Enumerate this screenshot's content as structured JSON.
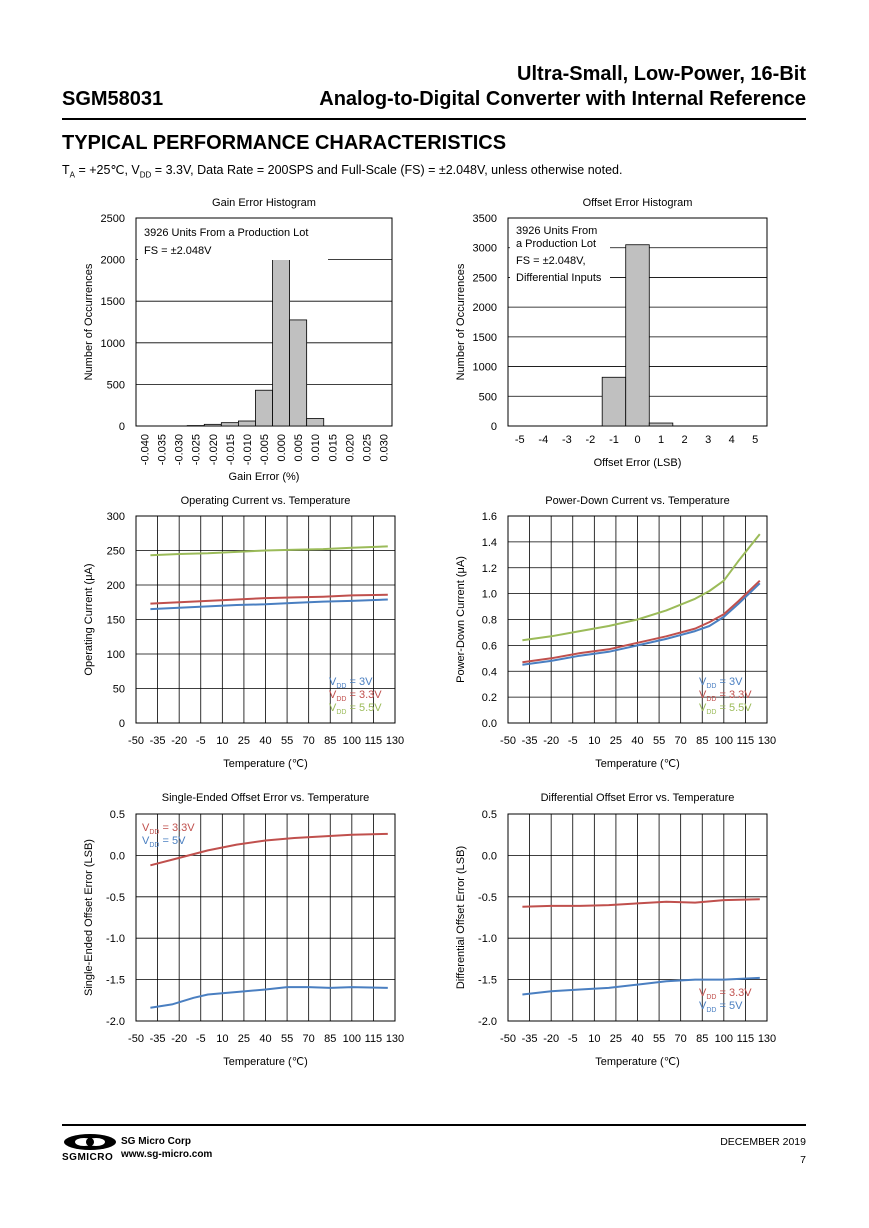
{
  "header": {
    "part_number": "SGM58031",
    "title_line1": "Ultra-Small, Low-Power, 16-Bit",
    "title_line2": "Analog-to-Digital Converter with Internal Reference"
  },
  "section_title": "TYPICAL PERFORMANCE CHARACTERISTICS",
  "conditions": {
    "t_a": "T",
    "t_a_sub": "A",
    "t_a_rest": " = +25℃, V",
    "v_sub": "DD",
    "rest": " = 3.3V, Data Rate = 200SPS and Full-Scale (FS) = ±2.048V, unless otherwise noted."
  },
  "colors": {
    "blue": "#4a7fc1",
    "red": "#c0504d",
    "green": "#9bbb59",
    "bar": "#c0c0c0"
  },
  "chart_data": [
    {
      "type": "bar",
      "title": "Gain Error Histogram",
      "xlabel": "Gain Error (%)",
      "ylabel": "Number of Occurrences",
      "ylim": [
        0,
        2500
      ],
      "yticks": [
        "0",
        "500",
        "1000",
        "1500",
        "2000",
        "2500"
      ],
      "categories": [
        "-0.040",
        "-0.035",
        "-0.030",
        "-0.025",
        "-0.020",
        "-0.015",
        "-0.010",
        "-0.005",
        "0.000",
        "0.005",
        "0.010",
        "0.015",
        "0.020",
        "0.025",
        "0.030"
      ],
      "values": [
        0,
        0,
        0,
        5,
        20,
        40,
        60,
        430,
        2010,
        1275,
        90,
        0,
        0,
        0,
        0
      ],
      "annotations": [
        "3926 Units From a Production Lot",
        "FS = ±2.048V"
      ]
    },
    {
      "type": "bar",
      "title": "Offset Error Histogram",
      "xlabel": "Offset Error (LSB)",
      "ylabel": "Number of Occurrences",
      "ylim": [
        0,
        3500
      ],
      "yticks": [
        "0",
        "500",
        "1000",
        "1500",
        "2000",
        "2500",
        "3000",
        "3500"
      ],
      "categories": [
        "-5",
        "-4",
        "-3",
        "-2",
        "-1",
        "0",
        "1",
        "2",
        "3",
        "4",
        "5"
      ],
      "values": [
        0,
        0,
        0,
        0,
        820,
        3050,
        50,
        0,
        0,
        0,
        0
      ],
      "annotations": [
        "3926 Units From",
        "a Production Lot",
        "FS = ±2.048V,",
        "Differential Inputs"
      ]
    },
    {
      "type": "line",
      "title": "Operating Current vs. Temperature",
      "xlabel": "Temperature (℃)",
      "ylabel": "Operating Current (μA)",
      "xlim": [
        -50,
        130
      ],
      "ylim": [
        0,
        300
      ],
      "xticks": [
        "-50",
        "-35",
        "-20",
        "-5",
        "10",
        "25",
        "40",
        "55",
        "70",
        "85",
        "100",
        "115",
        "130"
      ],
      "yticks": [
        "0",
        "50",
        "100",
        "150",
        "200",
        "250",
        "300"
      ],
      "legend": "bottom-right",
      "series": [
        {
          "name": "V",
          "sub": "DD",
          "suffix": " = 3V",
          "color": "#4a7fc1",
          "x": [
            -40,
            -20,
            0,
            20,
            40,
            60,
            80,
            100,
            125
          ],
          "y": [
            165,
            167,
            169,
            171,
            172,
            174,
            176,
            177,
            179
          ]
        },
        {
          "name": "V",
          "sub": "DD",
          "suffix": " = 3.3V",
          "color": "#c0504d",
          "x": [
            -40,
            -20,
            0,
            20,
            40,
            60,
            80,
            100,
            125
          ],
          "y": [
            173,
            175,
            177,
            179,
            181,
            182,
            183,
            185,
            186
          ]
        },
        {
          "name": "V",
          "sub": "DD",
          "suffix": " = 5.5V",
          "color": "#9bbb59",
          "x": [
            -40,
            -20,
            0,
            20,
            40,
            60,
            80,
            100,
            125
          ],
          "y": [
            243,
            245,
            246,
            248,
            250,
            251,
            252,
            254,
            256
          ]
        }
      ]
    },
    {
      "type": "line",
      "title": "Power-Down Current vs. Temperature",
      "xlabel": "Temperature (℃)",
      "ylabel": "Power-Down  Current (μA)",
      "xlim": [
        -50,
        130
      ],
      "ylim": [
        0,
        1.6
      ],
      "xticks": [
        "-50",
        "-35",
        "-20",
        "-5",
        "10",
        "25",
        "40",
        "55",
        "70",
        "85",
        "100",
        "115",
        "130"
      ],
      "yticks": [
        "0.0",
        "0.2",
        "0.4",
        "0.6",
        "0.8",
        "1.0",
        "1.2",
        "1.4",
        "1.6"
      ],
      "legend": "bottom-right",
      "series": [
        {
          "name": "V",
          "sub": "DD",
          "suffix": " = 3V",
          "color": "#4a7fc1",
          "x": [
            -40,
            -20,
            0,
            20,
            40,
            60,
            80,
            90,
            100,
            110,
            125
          ],
          "y": [
            0.45,
            0.48,
            0.52,
            0.55,
            0.6,
            0.65,
            0.71,
            0.75,
            0.82,
            0.92,
            1.08
          ]
        },
        {
          "name": "V",
          "sub": "DD",
          "suffix": " = 3.3V",
          "color": "#c0504d",
          "x": [
            -40,
            -20,
            0,
            20,
            40,
            60,
            80,
            90,
            100,
            110,
            125
          ],
          "y": [
            0.47,
            0.5,
            0.54,
            0.57,
            0.62,
            0.67,
            0.73,
            0.78,
            0.84,
            0.94,
            1.1
          ]
        },
        {
          "name": "V",
          "sub": "DD",
          "suffix": " = 5.5V",
          "color": "#9bbb59",
          "x": [
            -40,
            -20,
            0,
            20,
            40,
            60,
            80,
            90,
            100,
            110,
            125
          ],
          "y": [
            0.64,
            0.67,
            0.71,
            0.75,
            0.8,
            0.87,
            0.96,
            1.02,
            1.1,
            1.25,
            1.46
          ]
        }
      ]
    },
    {
      "type": "line",
      "title": "Single-Ended Offset Error vs. Temperature",
      "xlabel": "Temperature (℃)",
      "ylabel": "Single-Ended Offset Error (LSB)",
      "xlim": [
        -50,
        130
      ],
      "ylim": [
        -2.0,
        0.5
      ],
      "xticks": [
        "-50",
        "-35",
        "-20",
        "-5",
        "10",
        "25",
        "40",
        "55",
        "70",
        "85",
        "100",
        "115",
        "130"
      ],
      "yticks": [
        "-2.0",
        "-1.5",
        "-1.0",
        "-0.5",
        "0.0",
        "0.5"
      ],
      "legend": "top-left",
      "series": [
        {
          "name": "V",
          "sub": "DD",
          "suffix": " = 3.3V",
          "color": "#c0504d",
          "x": [
            -40,
            -20,
            0,
            20,
            40,
            60,
            80,
            100,
            125
          ],
          "y": [
            -0.12,
            -0.03,
            0.06,
            0.13,
            0.18,
            0.21,
            0.23,
            0.25,
            0.26
          ]
        },
        {
          "name": "V",
          "sub": "DD",
          "suffix": " = 5V",
          "color": "#4a7fc1",
          "x": [
            -40,
            -25,
            -10,
            0,
            20,
            40,
            55,
            70,
            85,
            100,
            125
          ],
          "y": [
            -1.84,
            -1.8,
            -1.72,
            -1.68,
            -1.65,
            -1.62,
            -1.59,
            -1.59,
            -1.6,
            -1.59,
            -1.6
          ]
        }
      ]
    },
    {
      "type": "line",
      "title": "Differential Offset Error vs. Temperature",
      "xlabel": "Temperature (℃)",
      "ylabel": "Differential  Offset Error (LSB)",
      "xlim": [
        -50,
        130
      ],
      "ylim": [
        -2.0,
        0.5
      ],
      "xticks": [
        "-50",
        "-35",
        "-20",
        "-5",
        "10",
        "25",
        "40",
        "55",
        "70",
        "85",
        "100",
        "115",
        "130"
      ],
      "yticks": [
        "-2.0",
        "-1.5",
        "-1.0",
        "-0.5",
        "0.0",
        "0.5"
      ],
      "legend": "bottom-right",
      "series": [
        {
          "name": "V",
          "sub": "DD",
          "suffix": " = 3.3V",
          "color": "#c0504d",
          "x": [
            -40,
            -20,
            0,
            20,
            40,
            60,
            80,
            100,
            125
          ],
          "y": [
            -0.62,
            -0.61,
            -0.61,
            -0.6,
            -0.58,
            -0.56,
            -0.57,
            -0.54,
            -0.53
          ]
        },
        {
          "name": "V",
          "sub": "DD",
          "suffix": " = 5V",
          "color": "#4a7fc1",
          "x": [
            -40,
            -20,
            0,
            20,
            40,
            60,
            80,
            100,
            125
          ],
          "y": [
            -1.68,
            -1.64,
            -1.62,
            -1.6,
            -1.56,
            -1.52,
            -1.5,
            -1.5,
            -1.48
          ]
        }
      ]
    }
  ],
  "footer": {
    "logo_text": "SGMICRO",
    "company": "SG Micro Corp",
    "website": "www.sg-micro.com",
    "date": "DECEMBER  2019",
    "page": "7"
  }
}
